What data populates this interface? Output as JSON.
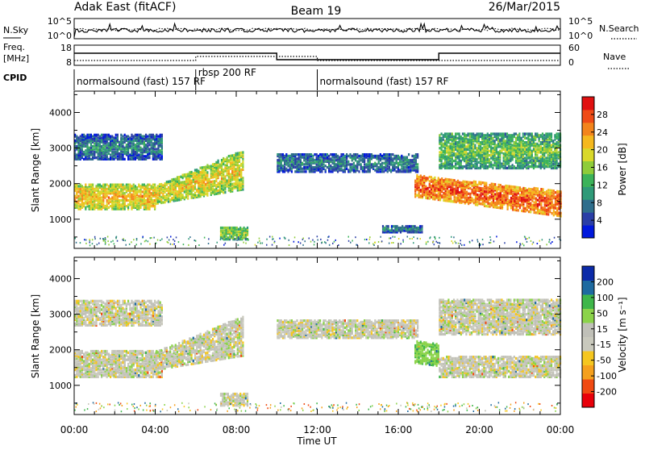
{
  "header": {
    "station": "Adak East (fitACF)",
    "beam": "Beam 19",
    "date": "26/Mar/2015"
  },
  "labels": {
    "nsky": "N.Sky",
    "nsearch": "N.Search",
    "freq": "Freq.",
    "mhz": "[MHz]",
    "nave": "Nave",
    "cpid": "CPID",
    "slant_range": "Slant Range [km]",
    "time_ut": "Time UT",
    "power_label": "Power [dB]",
    "velocity_label": "Velocity [m s⁻¹]"
  },
  "noise_axis": {
    "top": "10^5",
    "bottom": "10^0"
  },
  "freq_axis": {
    "left_ticks": [
      "18",
      "8"
    ],
    "right_ticks": [
      "60",
      "0"
    ]
  },
  "cpid_segments": [
    {
      "label": "normalsound (fast) 157 RF",
      "start": "00:00",
      "end": "06:00"
    },
    {
      "label": "rbsp 200 RF",
      "start": "06:00",
      "end": "12:00"
    },
    {
      "label": "normalsound (fast) 157 RF",
      "start": "12:00",
      "end": "24:00"
    }
  ],
  "power_colorbar": {
    "ticks": [
      "4",
      "8",
      "12",
      "16",
      "20",
      "24",
      "28"
    ]
  },
  "velocity_colorbar": {
    "ticks": [
      "-200",
      "-100",
      "-50",
      "-15",
      "15",
      "50",
      "100",
      "200"
    ]
  },
  "chart_data": [
    {
      "type": "heatmap",
      "quantity": "Power",
      "unit": "dB",
      "xlabel": "Time UT",
      "ylabel": "Slant Range [km]",
      "x_ticks": [
        "00:00",
        "04:00",
        "08:00",
        "12:00",
        "16:00",
        "20:00",
        "00:00"
      ],
      "y_ticks": [
        "1000",
        "2000",
        "3000",
        "4000"
      ],
      "ylim": [
        180,
        4600
      ],
      "clim": [
        0,
        32
      ],
      "echo_bands": [
        {
          "t_start": 0.0,
          "t_end": 4.0,
          "r_low": 1250,
          "r_high": 1950,
          "level_db": 20
        },
        {
          "t_start": 4.0,
          "t_end": 8.3,
          "r_low": 1400,
          "r_high": 2900,
          "level_db": 18
        },
        {
          "t_start": 0.0,
          "t_end": 4.3,
          "r_low": 2650,
          "r_high": 3350,
          "level_db": 6
        },
        {
          "t_start": 7.2,
          "t_end": 8.6,
          "r_low": 400,
          "r_high": 750,
          "level_db": 14
        },
        {
          "t_start": 10.0,
          "t_end": 17.0,
          "r_low": 2300,
          "r_high": 2800,
          "level_db": 6
        },
        {
          "t_start": 15.2,
          "t_end": 17.2,
          "r_low": 600,
          "r_high": 800,
          "level_db": 6
        },
        {
          "t_start": 16.8,
          "t_end": 24.0,
          "r_low": 1050,
          "r_high": 1750,
          "level_db": 26
        },
        {
          "t_start": 18.0,
          "t_end": 24.0,
          "r_low": 2400,
          "r_high": 3400,
          "level_db": 12
        }
      ]
    },
    {
      "type": "heatmap",
      "quantity": "Velocity",
      "unit": "m s^-1",
      "xlabel": "Time UT",
      "ylabel": "Slant Range [km]",
      "x_ticks": [
        "00:00",
        "04:00",
        "08:00",
        "12:00",
        "16:00",
        "20:00",
        "00:00"
      ],
      "y_ticks": [
        "1000",
        "2000",
        "3000",
        "4000"
      ],
      "ylim": [
        180,
        4600
      ],
      "clim": [
        -250,
        250
      ],
      "echo_bands": [
        {
          "t_start": 0.0,
          "t_end": 4.3,
          "r_low": 1200,
          "r_high": 1950,
          "velocity": 0
        },
        {
          "t_start": 4.0,
          "t_end": 8.3,
          "r_low": 1400,
          "r_high": 2900,
          "velocity": 0
        },
        {
          "t_start": 0.0,
          "t_end": 4.3,
          "r_low": 2650,
          "r_high": 3350,
          "velocity": 0
        },
        {
          "t_start": 7.2,
          "t_end": 8.6,
          "r_low": 400,
          "r_high": 750,
          "velocity": 0
        },
        {
          "t_start": 10.0,
          "t_end": 17.0,
          "r_low": 2300,
          "r_high": 2800,
          "velocity": 0
        },
        {
          "t_start": 16.8,
          "t_end": 18.0,
          "r_low": 1500,
          "r_high": 2100,
          "velocity": 40
        },
        {
          "t_start": 18.0,
          "t_end": 24.0,
          "r_low": 1200,
          "r_high": 1800,
          "velocity": 0
        },
        {
          "t_start": 18.0,
          "t_end": 24.0,
          "r_low": 2400,
          "r_high": 3400,
          "velocity": 0
        }
      ]
    }
  ]
}
